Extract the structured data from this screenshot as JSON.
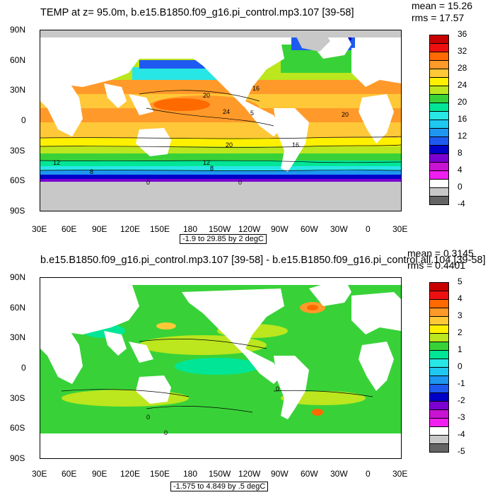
{
  "panels": [
    {
      "id": "top",
      "title": "TEMP at z=  95.0m, b.e15.B1850.f09_g16.pi_control.mp3.107 [39-58]",
      "mean": "mean = 15.26",
      "rms": "rms = 17.57",
      "range_text": "-1.9 to 29.85 by 2 degC",
      "lat_labels": [
        "90N",
        "60N",
        "30N",
        "0",
        "30S",
        "60S",
        "90S"
      ],
      "lon_labels": [
        "30E",
        "60E",
        "90E",
        "120E",
        "150E",
        "180",
        "150W",
        "120W",
        "90W",
        "60W",
        "30W",
        "0",
        "30E"
      ],
      "colorbar": {
        "labels": [
          "36",
          "32",
          "28",
          "24",
          "20",
          "16",
          "12",
          "8",
          "4",
          "0",
          "-4"
        ],
        "colors": [
          "#c80000",
          "#ee1010",
          "#ff6a00",
          "#ff9a2a",
          "#ffc838",
          "#fff000",
          "#bce61e",
          "#38d238",
          "#00e696",
          "#28e6e6",
          "#1ec8f0",
          "#1e96f0",
          "#1e5af0",
          "#0000c8",
          "#7c00d2",
          "#c814d2",
          "#f01ef0",
          "#ffffff",
          "#c8c8c8",
          "#646464"
        ],
        "contour_labels": [
          "20",
          "16",
          "24",
          "5",
          "20",
          "16",
          "20",
          "12",
          "12",
          "8",
          "8",
          "0",
          "0"
        ]
      }
    },
    {
      "id": "bottom",
      "title": "b.e15.B1850.f09_g16.pi_control.mp3.107 [39-58] - b.e15.B1850.f09_g16.pi_control.all.104 [39-58]",
      "mean": "mean = 0.3145",
      "rms": "rms = 0.4401",
      "range_text": "-1.575 to 4.849 by .5 degC",
      "lat_labels": [
        "90N",
        "60N",
        "30N",
        "0",
        "30S",
        "60S",
        "90S"
      ],
      "lon_labels": [
        "30E",
        "60E",
        "90E",
        "120E",
        "150E",
        "180",
        "150W",
        "120W",
        "90W",
        "60W",
        "30W",
        "0",
        "30E"
      ],
      "colorbar": {
        "labels": [
          "5",
          "4",
          "3",
          "2",
          "1",
          "0",
          "-1",
          "-2",
          "-3",
          "-4",
          "-5"
        ],
        "colors": [
          "#c80000",
          "#ee1010",
          "#ff6a00",
          "#ff9a2a",
          "#ffc838",
          "#fff000",
          "#bce61e",
          "#38d238",
          "#00e696",
          "#28e6e6",
          "#1ec8f0",
          "#1e96f0",
          "#1e5af0",
          "#0000c8",
          "#7c00d2",
          "#c814d2",
          "#f01ef0",
          "#ffffff",
          "#c8c8c8",
          "#646464"
        ],
        "contour_labels": [
          "0",
          "0",
          "0"
        ]
      }
    }
  ]
}
